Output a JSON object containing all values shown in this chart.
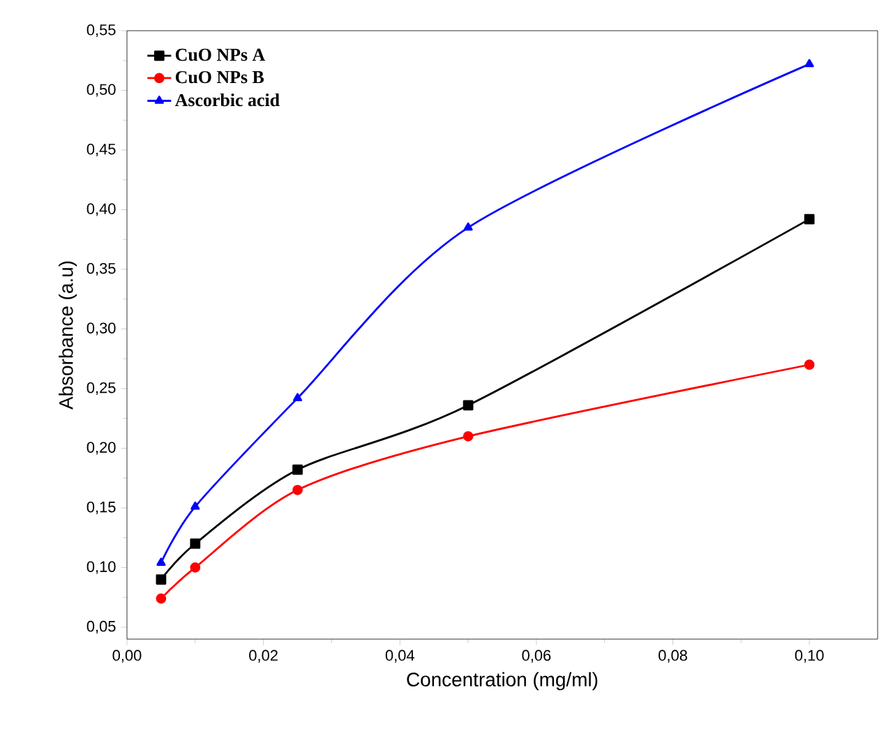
{
  "chart_data": {
    "type": "line",
    "xlabel": "Concentration (mg/ml)",
    "ylabel": "Absorbance  (a.u)",
    "x": [
      0.005,
      0.01,
      0.025,
      0.05,
      0.1
    ],
    "series": [
      {
        "name": "CuO NPs A",
        "color": "#000000",
        "marker": "square",
        "values": [
          0.09,
          0.12,
          0.182,
          0.236,
          0.392
        ]
      },
      {
        "name": "CuO NPs B",
        "color": "#ff0000",
        "marker": "circle",
        "values": [
          0.074,
          0.1,
          0.165,
          0.21,
          0.27
        ]
      },
      {
        "name": "Ascorbic acid",
        "color": "#0000ff",
        "marker": "triangle",
        "values": [
          0.104,
          0.151,
          0.242,
          0.385,
          0.522
        ]
      }
    ],
    "xlim": [
      0,
      0.11
    ],
    "ylim": [
      0.04,
      0.55
    ],
    "xticks": [
      {
        "value": 0,
        "label": "0,00"
      },
      {
        "value": 0.02,
        "label": "0,02"
      },
      {
        "value": 0.04,
        "label": "0,04"
      },
      {
        "value": 0.06,
        "label": "0,06"
      },
      {
        "value": 0.08,
        "label": "0,08"
      },
      {
        "value": 0.1,
        "label": "0,10"
      }
    ],
    "yticks": [
      {
        "value": 0.05,
        "label": "0,05"
      },
      {
        "value": 0.1,
        "label": "0,10"
      },
      {
        "value": 0.15,
        "label": "0,15"
      },
      {
        "value": 0.2,
        "label": "0,20"
      },
      {
        "value": 0.25,
        "label": "0,25"
      },
      {
        "value": 0.3,
        "label": "0,30"
      },
      {
        "value": 0.35,
        "label": "0,35"
      },
      {
        "value": 0.4,
        "label": "0,40"
      },
      {
        "value": 0.45,
        "label": "0,45"
      },
      {
        "value": 0.5,
        "label": "0,50"
      },
      {
        "value": 0.55,
        "label": "0,55"
      }
    ],
    "grid": false,
    "legend": "top left",
    "line_style": "solid"
  }
}
